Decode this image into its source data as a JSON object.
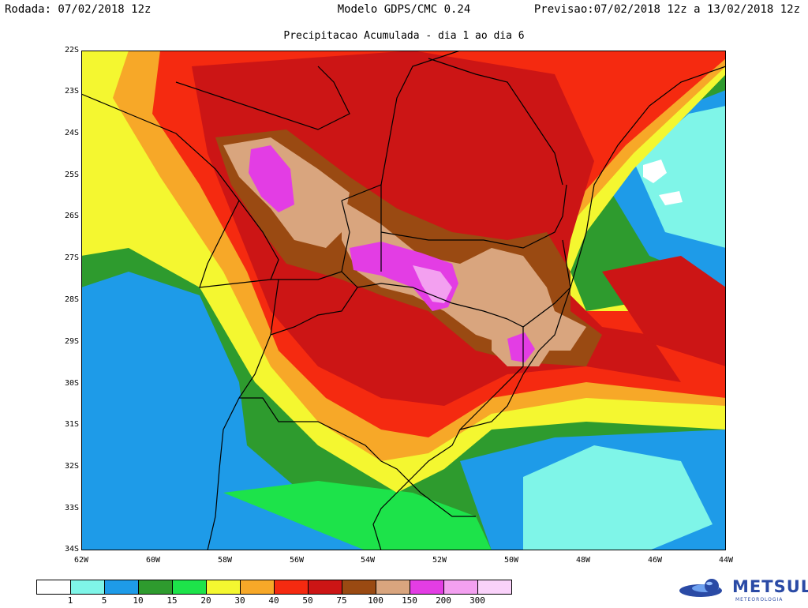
{
  "header": {
    "run": "Rodada: 07/02/2018 12z",
    "model": "Modelo GDPS/CMC 0.24",
    "forecast": "Previsao:07/02/2018 12z a 13/02/2018 12z",
    "subtitle": "Precipitacao Acumulada - dia 1 ao dia 6"
  },
  "axes": {
    "lat_labels": [
      "22S",
      "23S",
      "24S",
      "25S",
      "26S",
      "27S",
      "28S",
      "29S",
      "30S",
      "31S",
      "32S",
      "33S",
      "34S"
    ],
    "lon_labels": [
      "62W",
      "60W",
      "58W",
      "56W",
      "54W",
      "52W",
      "50W",
      "48W",
      "46W",
      "44W"
    ]
  },
  "legend": {
    "colors": [
      "#ffffff",
      "#7ff5e8",
      "#1e9be8",
      "#2e9b2e",
      "#1de34a",
      "#f4f730",
      "#f7a828",
      "#f52a10",
      "#cc1515",
      "#9a4a12",
      "#d9a57e",
      "#e33de4",
      "#f3a0f0",
      "#fad2fa"
    ],
    "labels": [
      "1",
      "5",
      "10",
      "15",
      "20",
      "30",
      "40",
      "50",
      "75",
      "100",
      "150",
      "200",
      "300"
    ]
  },
  "logo": {
    "name": "METSUL",
    "tagline": "METEOROLOGIA",
    "icon": "globe-icon"
  }
}
